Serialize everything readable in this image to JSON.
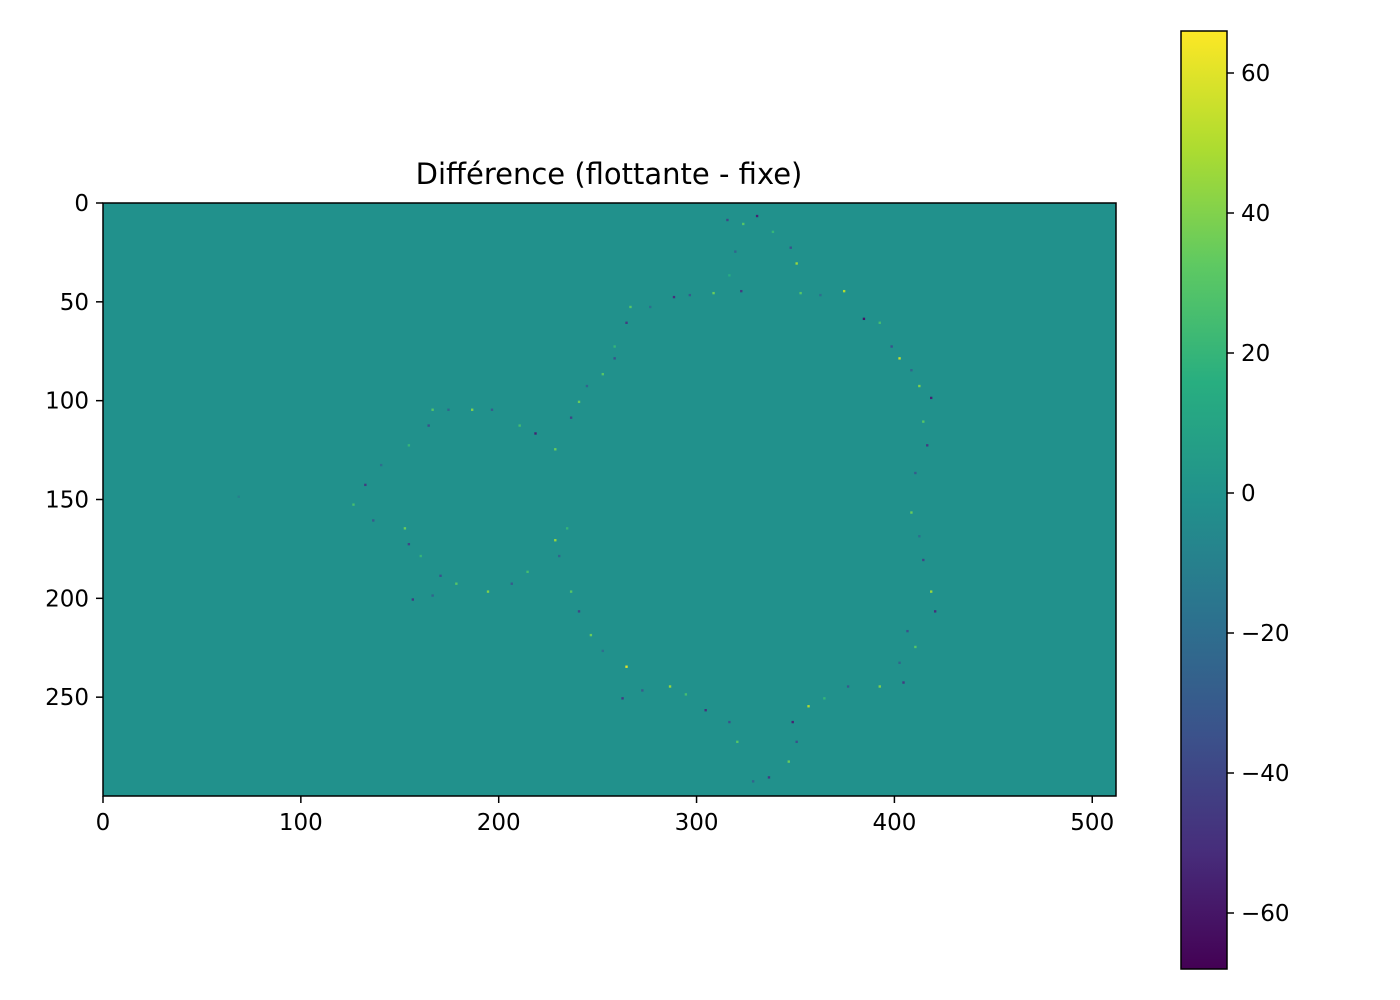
{
  "chart_data": [
    {
      "type": "heatmap",
      "title": "Différence (flottante - fixe)",
      "xlabel": "",
      "ylabel": "",
      "xlim": [
        0,
        512
      ],
      "ylim": [
        300,
        0
      ],
      "xticks": [
        0,
        100,
        200,
        300,
        400,
        500
      ],
      "yticks": [
        0,
        50,
        100,
        150,
        200,
        250
      ],
      "background_value": 0,
      "grid": false,
      "colormap": "viridis",
      "colorbar": {
        "range": [
          -68,
          66
        ],
        "ticks": [
          {
            "value": 60,
            "label": "60"
          },
          {
            "value": 40,
            "label": "40"
          },
          {
            "value": 20,
            "label": "20"
          },
          {
            "value": 0,
            "label": "0"
          },
          {
            "value": -20,
            "label": "−20"
          },
          {
            "value": -40,
            "label": "−40"
          },
          {
            "value": -60,
            "label": "−60"
          }
        ]
      },
      "nonzero_pixels": [
        {
          "x": 315,
          "y": 8,
          "value": -40
        },
        {
          "x": 323,
          "y": 10,
          "value": 30
        },
        {
          "x": 330,
          "y": 6,
          "value": -55
        },
        {
          "x": 338,
          "y": 14,
          "value": 20
        },
        {
          "x": 347,
          "y": 22,
          "value": -35
        },
        {
          "x": 350,
          "y": 30,
          "value": 45
        },
        {
          "x": 319,
          "y": 24,
          "value": -25
        },
        {
          "x": 316,
          "y": 36,
          "value": 15
        },
        {
          "x": 322,
          "y": 44,
          "value": -45
        },
        {
          "x": 296,
          "y": 46,
          "value": -30
        },
        {
          "x": 288,
          "y": 47,
          "value": -50
        },
        {
          "x": 308,
          "y": 45,
          "value": 35
        },
        {
          "x": 352,
          "y": 45,
          "value": 30
        },
        {
          "x": 362,
          "y": 46,
          "value": -20
        },
        {
          "x": 374,
          "y": 44,
          "value": 50
        },
        {
          "x": 384,
          "y": 58,
          "value": -60
        },
        {
          "x": 392,
          "y": 60,
          "value": 25
        },
        {
          "x": 398,
          "y": 72,
          "value": -35
        },
        {
          "x": 402,
          "y": 78,
          "value": 55
        },
        {
          "x": 408,
          "y": 84,
          "value": -25
        },
        {
          "x": 412,
          "y": 92,
          "value": 40
        },
        {
          "x": 418,
          "y": 98,
          "value": -55
        },
        {
          "x": 414,
          "y": 110,
          "value": 30
        },
        {
          "x": 416,
          "y": 122,
          "value": -45
        },
        {
          "x": 410,
          "y": 136,
          "value": -30
        },
        {
          "x": 408,
          "y": 156,
          "value": 35
        },
        {
          "x": 412,
          "y": 168,
          "value": -20
        },
        {
          "x": 414,
          "y": 180,
          "value": -40
        },
        {
          "x": 418,
          "y": 196,
          "value": 45
        },
        {
          "x": 420,
          "y": 206,
          "value": -50
        },
        {
          "x": 406,
          "y": 216,
          "value": -35
        },
        {
          "x": 410,
          "y": 224,
          "value": 30
        },
        {
          "x": 402,
          "y": 232,
          "value": -25
        },
        {
          "x": 392,
          "y": 244,
          "value": 40
        },
        {
          "x": 404,
          "y": 242,
          "value": -45
        },
        {
          "x": 376,
          "y": 244,
          "value": -30
        },
        {
          "x": 364,
          "y": 250,
          "value": 20
        },
        {
          "x": 356,
          "y": 254,
          "value": 50
        },
        {
          "x": 348,
          "y": 262,
          "value": -55
        },
        {
          "x": 350,
          "y": 272,
          "value": -35
        },
        {
          "x": 346,
          "y": 282,
          "value": 35
        },
        {
          "x": 336,
          "y": 290,
          "value": -45
        },
        {
          "x": 328,
          "y": 292,
          "value": -25
        },
        {
          "x": 320,
          "y": 272,
          "value": 30
        },
        {
          "x": 316,
          "y": 262,
          "value": -35
        },
        {
          "x": 304,
          "y": 256,
          "value": -50
        },
        {
          "x": 294,
          "y": 248,
          "value": 25
        },
        {
          "x": 286,
          "y": 244,
          "value": 45
        },
        {
          "x": 272,
          "y": 246,
          "value": -30
        },
        {
          "x": 262,
          "y": 250,
          "value": -45
        },
        {
          "x": 264,
          "y": 234,
          "value": 60
        },
        {
          "x": 252,
          "y": 226,
          "value": -20
        },
        {
          "x": 246,
          "y": 218,
          "value": 35
        },
        {
          "x": 240,
          "y": 206,
          "value": -40
        },
        {
          "x": 236,
          "y": 196,
          "value": 30
        },
        {
          "x": 230,
          "y": 178,
          "value": -25
        },
        {
          "x": 228,
          "y": 170,
          "value": 45
        },
        {
          "x": 234,
          "y": 164,
          "value": 20
        },
        {
          "x": 228,
          "y": 124,
          "value": 35
        },
        {
          "x": 218,
          "y": 116,
          "value": -55
        },
        {
          "x": 210,
          "y": 112,
          "value": 25
        },
        {
          "x": 196,
          "y": 104,
          "value": -30
        },
        {
          "x": 186,
          "y": 104,
          "value": 40
        },
        {
          "x": 174,
          "y": 104,
          "value": -25
        },
        {
          "x": 166,
          "y": 104,
          "value": 30
        },
        {
          "x": 164,
          "y": 112,
          "value": -35
        },
        {
          "x": 154,
          "y": 122,
          "value": 20
        },
        {
          "x": 140,
          "y": 132,
          "value": -20
        },
        {
          "x": 132,
          "y": 142,
          "value": -45
        },
        {
          "x": 126,
          "y": 152,
          "value": 25
        },
        {
          "x": 136,
          "y": 160,
          "value": -30
        },
        {
          "x": 152,
          "y": 164,
          "value": 35
        },
        {
          "x": 154,
          "y": 172,
          "value": -40
        },
        {
          "x": 160,
          "y": 178,
          "value": 20
        },
        {
          "x": 170,
          "y": 188,
          "value": -35
        },
        {
          "x": 178,
          "y": 192,
          "value": 30
        },
        {
          "x": 166,
          "y": 198,
          "value": -25
        },
        {
          "x": 156,
          "y": 200,
          "value": -45
        },
        {
          "x": 194,
          "y": 196,
          "value": 40
        },
        {
          "x": 206,
          "y": 192,
          "value": -30
        },
        {
          "x": 214,
          "y": 186,
          "value": 25
        },
        {
          "x": 240,
          "y": 100,
          "value": 35
        },
        {
          "x": 236,
          "y": 108,
          "value": -40
        },
        {
          "x": 244,
          "y": 92,
          "value": -25
        },
        {
          "x": 252,
          "y": 86,
          "value": 30
        },
        {
          "x": 258,
          "y": 78,
          "value": -35
        },
        {
          "x": 258,
          "y": 72,
          "value": 20
        },
        {
          "x": 264,
          "y": 60,
          "value": -45
        },
        {
          "x": 266,
          "y": 52,
          "value": 30
        },
        {
          "x": 276,
          "y": 52,
          "value": -20
        },
        {
          "x": 68,
          "y": 148,
          "value": -10
        }
      ]
    }
  ]
}
